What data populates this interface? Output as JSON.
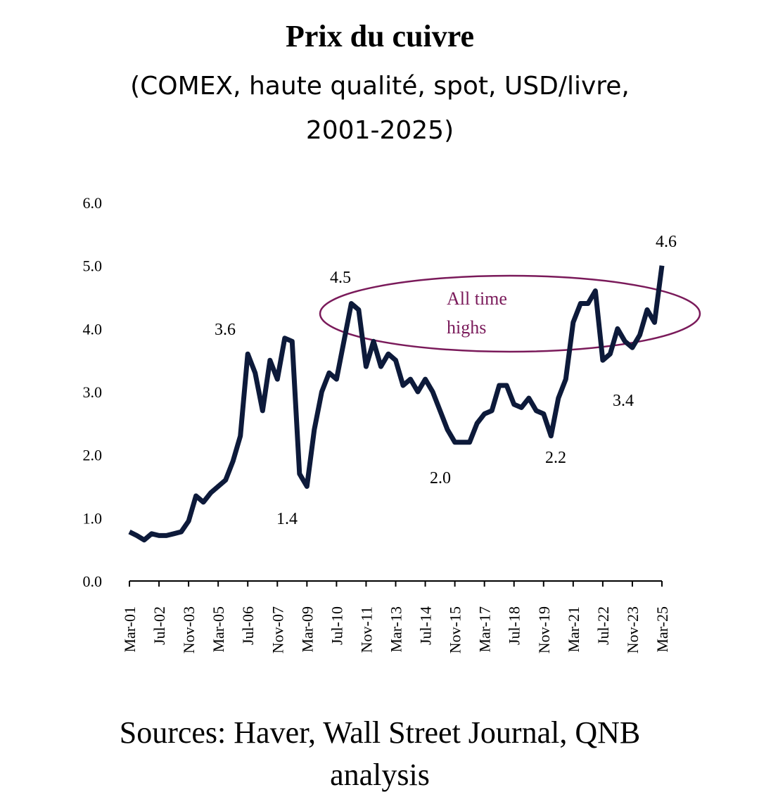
{
  "chart_data": {
    "type": "line",
    "title": "Prix du cuivre",
    "subtitle": [
      "(COMEX, haute qualité, spot, USD/livre,",
      "2001-2025)"
    ],
    "source": [
      "Sources: Haver, Wall Street Journal, QNB",
      "analysis"
    ],
    "categories": [
      "Mar-01",
      null,
      null,
      null,
      "Jul-02",
      null,
      null,
      null,
      "Nov-03",
      null,
      null,
      null,
      "Mar-05",
      null,
      null,
      null,
      "Jul-06",
      null,
      null,
      null,
      "Nov-07",
      null,
      null,
      null,
      "Mar-09",
      null,
      null,
      null,
      "Jul-10",
      null,
      null,
      null,
      "Nov-11",
      null,
      null,
      null,
      "Mar-13",
      null,
      null,
      null,
      "Jul-14",
      null,
      null,
      null,
      "Nov-15",
      null,
      null,
      null,
      "Mar-17",
      null,
      null,
      null,
      "Jul-18",
      null,
      null,
      null,
      "Nov-19",
      null,
      null,
      null,
      "Mar-21",
      null,
      null,
      null,
      "Jul-22",
      null,
      null,
      null,
      "Nov-23",
      null,
      null,
      null,
      "Mar-25"
    ],
    "series": [
      {
        "color": "#0d1a3a",
        "values": [
          0.78,
          0.72,
          0.65,
          0.75,
          0.72,
          0.72,
          0.75,
          0.78,
          0.95,
          1.35,
          1.25,
          1.4,
          1.5,
          1.6,
          1.9,
          2.3,
          3.6,
          3.3,
          2.7,
          3.5,
          3.2,
          3.85,
          3.8,
          1.7,
          1.5,
          2.4,
          3.0,
          3.3,
          3.2,
          3.8,
          4.4,
          4.3,
          3.4,
          3.8,
          3.4,
          3.6,
          3.5,
          3.1,
          3.2,
          3.0,
          3.2,
          3.0,
          2.7,
          2.4,
          2.2,
          2.2,
          2.2,
          2.5,
          2.65,
          2.7,
          3.1,
          3.1,
          2.8,
          2.75,
          2.9,
          2.7,
          2.65,
          2.3,
          2.9,
          3.2,
          4.1,
          4.4,
          4.4,
          4.6,
          3.5,
          3.6,
          4.0,
          3.8,
          3.7,
          3.9,
          4.3,
          4.1,
          5.0
        ]
      }
    ],
    "ylim": [
      0,
      6
    ],
    "yticks": [
      {
        "value": 0,
        "label": "0.0"
      },
      {
        "value": 1,
        "label": "1.0"
      },
      {
        "value": 2,
        "label": "2.0"
      },
      {
        "value": 3,
        "label": "3.0"
      },
      {
        "value": 4,
        "label": "4.0"
      },
      {
        "value": 5,
        "label": "5.0"
      },
      {
        "value": 6,
        "label": "6.0"
      }
    ],
    "annotations": [
      "3.6",
      "1.4",
      "4.5",
      "2.0",
      "2.2",
      "3.4",
      "4.6",
      "All time",
      "highs"
    ]
  }
}
